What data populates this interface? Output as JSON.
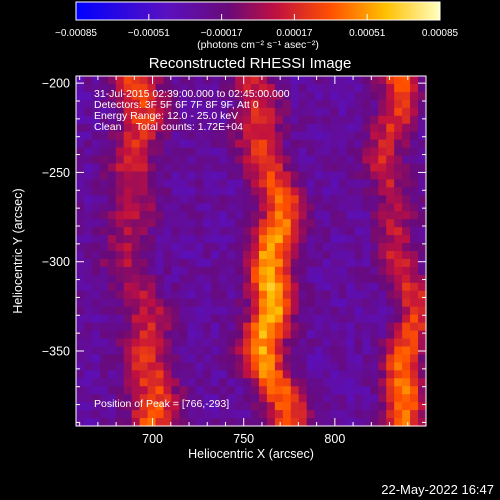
{
  "chart_data": {
    "type": "heatmap",
    "title": "Reconstructed RHESSI Image",
    "xlabel": "Heliocentric X (arcsec)",
    "ylabel": "Heliocentric Y (arcsec)",
    "xlim": [
      658,
      850
    ],
    "ylim": [
      -392,
      -196
    ],
    "x_ticks": [
      700,
      750,
      800
    ],
    "y_ticks": [
      -200,
      -250,
      -300,
      -350
    ],
    "x_tick_labels": [
      "700",
      "750",
      "800"
    ],
    "y_tick_labels": [
      "-200",
      "-250",
      "-300",
      "-350"
    ],
    "colorbar": {
      "range": [
        -0.00085,
        0.00085
      ],
      "ticks": [
        -0.00085,
        -0.00051,
        -0.00017,
        0.00017,
        0.00051,
        0.00085
      ],
      "tick_labels": [
        "-0.00085",
        "-0.00051",
        "-0.00017",
        "0.00017",
        "0.00051",
        "0.00085"
      ],
      "units": "(photons cm⁻² s⁻¹ asec⁻²)",
      "colormap": "blue-purple-red-yellow-white"
    },
    "annotations": {
      "time": "31-Jul-2015 02:39:00.000 to 02:45:00.000",
      "detectors": "Detectors: 3F 5F 6F 7F 8F 9F, Att 0",
      "energy": "Energy Range: 12.0 - 25.0 keV",
      "clean": "Clean     Total counts: 1.72E+04",
      "peak": "Position of Peak = [766,-293]"
    },
    "bright_ridges": [
      {
        "x_center": 692,
        "amplitude": 0.00062,
        "width": 13
      },
      {
        "x_center": 765,
        "amplitude": 0.00085,
        "width": 12
      },
      {
        "x_center": 836,
        "amplitude": 0.0007,
        "width": 11
      }
    ],
    "peak": [
      766,
      -293
    ]
  },
  "footer": {
    "date": "22-May-2022 16:47"
  }
}
